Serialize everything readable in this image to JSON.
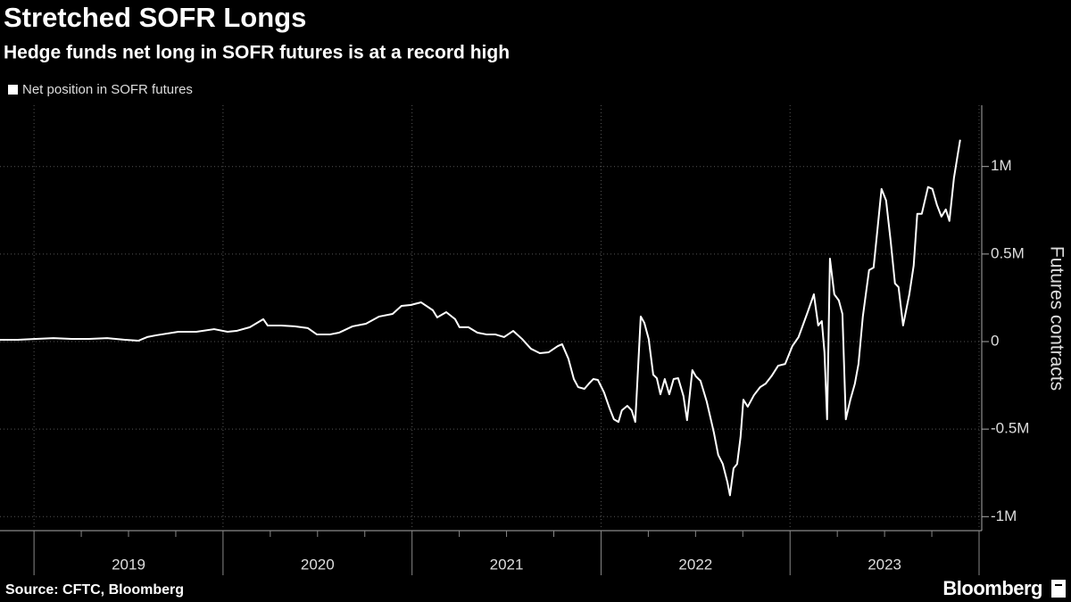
{
  "chart_data": {
    "type": "line",
    "title": "Stretched SOFR Longs",
    "subtitle": "Hedge funds net long in SOFR futures is at a record high",
    "y_axis_title": "Futures contracts",
    "source": "Source: CFTC, Bloomberg",
    "brand": "Bloomberg",
    "x": [
      2018.82,
      2018.914,
      2019.009,
      2019.103,
      2019.198,
      2019.292,
      2019.387,
      2019.481,
      2019.552,
      2019.599,
      2019.646,
      2019.764,
      2019.859,
      2019.953,
      2020.024,
      2020.071,
      2020.142,
      2020.213,
      2020.236,
      2020.307,
      2020.378,
      2020.449,
      2020.496,
      2020.567,
      2020.614,
      2020.685,
      2020.756,
      2020.826,
      2020.897,
      2020.944,
      2020.992,
      2021.048,
      2021.11,
      2021.133,
      2021.181,
      2021.228,
      2021.251,
      2021.298,
      2021.346,
      2021.393,
      2021.44,
      2021.487,
      2021.535,
      2021.582,
      2021.629,
      2021.676,
      2021.723,
      2021.771,
      2021.794,
      2021.827,
      2021.856,
      2021.879,
      2021.912,
      2021.936,
      2021.959,
      2021.983,
      2022.016,
      2022.044,
      2022.068,
      2022.092,
      2022.11,
      2022.139,
      2022.162,
      2022.181,
      2022.21,
      2022.229,
      2022.252,
      2022.276,
      2022.295,
      2022.314,
      2022.337,
      2022.361,
      2022.384,
      2022.408,
      2022.436,
      2022.455,
      2022.483,
      2022.502,
      2022.526,
      2022.559,
      2022.597,
      2022.62,
      2022.644,
      2022.668,
      2022.682,
      2022.701,
      2022.72,
      2022.738,
      2022.753,
      2022.776,
      2022.809,
      2022.842,
      2022.871,
      2022.904,
      2022.937,
      2022.974,
      2023.012,
      2023.045,
      2023.093,
      2023.126,
      2023.149,
      2023.168,
      2023.182,
      2023.196,
      2023.211,
      2023.234,
      2023.258,
      2023.277,
      2023.295,
      2023.319,
      2023.343,
      2023.362,
      2023.385,
      2023.418,
      2023.442,
      2023.484,
      2023.508,
      2023.532,
      2023.555,
      2023.574,
      2023.598,
      2023.631,
      2023.654,
      2023.673,
      2023.697,
      2023.73,
      2023.753,
      2023.777,
      2023.801,
      2023.824,
      2023.843,
      2023.867,
      2023.886,
      2023.9
    ],
    "series": [
      {
        "name": "Net position in SOFR futures",
        "color": "#ffffff",
        "values": [
          10000,
          10000,
          15000,
          20000,
          15000,
          15000,
          20000,
          10000,
          5000,
          26000,
          36000,
          56000,
          56000,
          71000,
          56000,
          61000,
          82000,
          128000,
          92000,
          92000,
          87000,
          77000,
          41000,
          41000,
          51000,
          87000,
          102000,
          143000,
          158000,
          204000,
          209000,
          224000,
          179000,
          138000,
          168000,
          128000,
          82000,
          82000,
          51000,
          41000,
          41000,
          26000,
          61000,
          15000,
          -41000,
          -66000,
          -61000,
          -26000,
          -15000,
          -97000,
          -214000,
          -260000,
          -270000,
          -240000,
          -214000,
          -219000,
          -291000,
          -378000,
          -444000,
          -459000,
          -393000,
          -367000,
          -393000,
          -459000,
          143000,
          107000,
          15000,
          -189000,
          -209000,
          -301000,
          -214000,
          -301000,
          -214000,
          -209000,
          -311000,
          -449000,
          -163000,
          -199000,
          -224000,
          -342000,
          -520000,
          -648000,
          -699000,
          -801000,
          -878000,
          -724000,
          -699000,
          -546000,
          -332000,
          -372000,
          -306000,
          -260000,
          -240000,
          -194000,
          -138000,
          -128000,
          -26000,
          26000,
          168000,
          270000,
          92000,
          117000,
          -61000,
          -444000,
          474000,
          270000,
          235000,
          158000,
          -444000,
          -332000,
          -240000,
          -128000,
          143000,
          408000,
          423000,
          872000,
          806000,
          577000,
          332000,
          311000,
          92000,
          270000,
          434000,
          730000,
          730000,
          883000,
          872000,
          781000,
          714000,
          755000,
          689000,
          934000,
          1061000,
          1153000
        ]
      }
    ],
    "xlim": [
      2018.82,
      2024.0
    ],
    "xticks": [
      {
        "value": 2019.5,
        "label": "2019"
      },
      {
        "value": 2020.5,
        "label": "2020"
      },
      {
        "value": 2021.5,
        "label": "2021"
      },
      {
        "value": 2022.5,
        "label": "2022"
      },
      {
        "value": 2023.5,
        "label": "2023"
      }
    ],
    "ylim": [
      -1080000,
      1350000
    ],
    "yticks": [
      {
        "value": -1000000,
        "label": "-1M"
      },
      {
        "value": -500000,
        "label": "-0.5M"
      },
      0,
      {
        "value": 500000,
        "label": "0.5M"
      },
      {
        "value": 1000000,
        "label": "1M"
      }
    ],
    "grid": true,
    "legend": "top-left"
  }
}
